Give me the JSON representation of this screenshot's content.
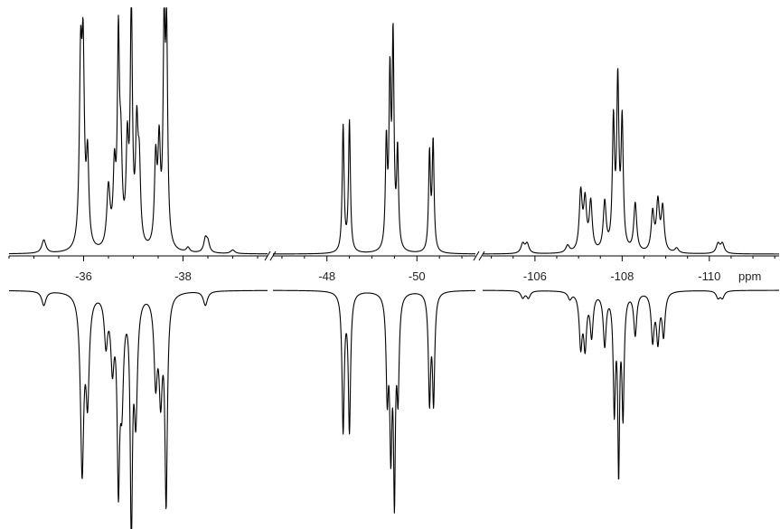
{
  "chart_data": {
    "type": "line",
    "xlabel": "ppm",
    "ylabel": "",
    "title": "",
    "x_reversed": true,
    "axis_break_markers": true,
    "segments": [
      {
        "xlim": [
          -34.5,
          -39.7
        ],
        "tick_labels": [
          "-36",
          "-38"
        ],
        "ticks": [
          -36,
          -38
        ],
        "upper_peaks": [
          {
            "x": -35.2,
            "h": 0.055,
            "w": 0.05
          },
          {
            "x": -35.94,
            "h": 0.72,
            "w": 0.03
          },
          {
            "x": -35.99,
            "h": 0.74,
            "w": 0.03
          },
          {
            "x": -36.08,
            "h": 0.36,
            "w": 0.03
          },
          {
            "x": -36.5,
            "h": 0.25,
            "w": 0.04
          },
          {
            "x": -36.62,
            "h": 0.3,
            "w": 0.03
          },
          {
            "x": -36.7,
            "h": 0.82,
            "w": 0.025
          },
          {
            "x": -36.75,
            "h": 0.35,
            "w": 0.03
          },
          {
            "x": -36.88,
            "h": 0.4,
            "w": 0.03
          },
          {
            "x": -36.96,
            "h": 1.0,
            "w": 0.025
          },
          {
            "x": -37.07,
            "h": 0.46,
            "w": 0.03
          },
          {
            "x": -37.12,
            "h": 0.3,
            "w": 0.03
          },
          {
            "x": -37.45,
            "h": 0.35,
            "w": 0.03
          },
          {
            "x": -37.52,
            "h": 0.4,
            "w": 0.03
          },
          {
            "x": -37.62,
            "h": 0.85,
            "w": 0.025
          },
          {
            "x": -37.67,
            "h": 0.83,
            "w": 0.025
          },
          {
            "x": -38.1,
            "h": 0.02,
            "w": 0.04
          },
          {
            "x": -38.45,
            "h": 0.055,
            "w": 0.04
          },
          {
            "x": -38.5,
            "h": 0.04,
            "w": 0.04
          },
          {
            "x": -39.0,
            "h": 0.015,
            "w": 0.05
          }
        ],
        "lower_peaks": [
          {
            "x": -35.2,
            "h": 0.06,
            "w": 0.05
          },
          {
            "x": -35.97,
            "h": 0.74,
            "w": 0.04
          },
          {
            "x": -36.08,
            "h": 0.42,
            "w": 0.04
          },
          {
            "x": -36.45,
            "h": 0.2,
            "w": 0.04
          },
          {
            "x": -36.58,
            "h": 0.28,
            "w": 0.04
          },
          {
            "x": -36.7,
            "h": 0.74,
            "w": 0.03
          },
          {
            "x": -36.77,
            "h": 0.4,
            "w": 0.04
          },
          {
            "x": -36.96,
            "h": 1.0,
            "w": 0.025
          },
          {
            "x": -37.05,
            "h": 0.5,
            "w": 0.04
          },
          {
            "x": -37.45,
            "h": 0.35,
            "w": 0.04
          },
          {
            "x": -37.55,
            "h": 0.4,
            "w": 0.04
          },
          {
            "x": -37.66,
            "h": 0.86,
            "w": 0.03
          },
          {
            "x": -38.45,
            "h": 0.06,
            "w": 0.05
          }
        ]
      },
      {
        "xlim": [
          -46.8,
          -51.3
        ],
        "tick_labels": [
          "-48",
          "-50"
        ],
        "ticks": [
          -48,
          -50
        ],
        "upper_peaks": [
          {
            "x": -48.36,
            "h": 0.52,
            "w": 0.025
          },
          {
            "x": -48.5,
            "h": 0.54,
            "w": 0.025
          },
          {
            "x": -49.32,
            "h": 0.43,
            "w": 0.025
          },
          {
            "x": -49.4,
            "h": 0.68,
            "w": 0.025
          },
          {
            "x": -49.47,
            "h": 0.85,
            "w": 0.025
          },
          {
            "x": -49.57,
            "h": 0.4,
            "w": 0.025
          },
          {
            "x": -50.28,
            "h": 0.4,
            "w": 0.025
          },
          {
            "x": -50.36,
            "h": 0.45,
            "w": 0.025
          }
        ],
        "lower_peaks": [
          {
            "x": -48.36,
            "h": 0.58,
            "w": 0.03
          },
          {
            "x": -48.5,
            "h": 0.58,
            "w": 0.03
          },
          {
            "x": -49.34,
            "h": 0.4,
            "w": 0.03
          },
          {
            "x": -49.42,
            "h": 0.62,
            "w": 0.03
          },
          {
            "x": -49.5,
            "h": 0.8,
            "w": 0.025
          },
          {
            "x": -49.58,
            "h": 0.4,
            "w": 0.03
          },
          {
            "x": -50.28,
            "h": 0.45,
            "w": 0.03
          },
          {
            "x": -50.37,
            "h": 0.45,
            "w": 0.03
          }
        ]
      },
      {
        "xlim": [
          -104.8,
          -111.6
        ],
        "tick_labels": [
          "-106",
          "-108",
          "-110"
        ],
        "ticks": [
          -106,
          -108,
          -110
        ],
        "upper_peaks": [
          {
            "x": -105.72,
            "h": 0.04,
            "w": 0.05
          },
          {
            "x": -105.82,
            "h": 0.04,
            "w": 0.05
          },
          {
            "x": -106.75,
            "h": 0.03,
            "w": 0.05
          },
          {
            "x": -107.05,
            "h": 0.24,
            "w": 0.04
          },
          {
            "x": -107.15,
            "h": 0.2,
            "w": 0.04
          },
          {
            "x": -107.28,
            "h": 0.2,
            "w": 0.04
          },
          {
            "x": -107.6,
            "h": 0.2,
            "w": 0.04
          },
          {
            "x": -107.8,
            "h": 0.52,
            "w": 0.03
          },
          {
            "x": -107.9,
            "h": 0.68,
            "w": 0.03
          },
          {
            "x": -108.0,
            "h": 0.52,
            "w": 0.03
          },
          {
            "x": -108.3,
            "h": 0.2,
            "w": 0.04
          },
          {
            "x": -108.7,
            "h": 0.16,
            "w": 0.04
          },
          {
            "x": -108.82,
            "h": 0.2,
            "w": 0.04
          },
          {
            "x": -108.93,
            "h": 0.18,
            "w": 0.04
          },
          {
            "x": -109.25,
            "h": 0.02,
            "w": 0.05
          },
          {
            "x": -110.2,
            "h": 0.04,
            "w": 0.05
          },
          {
            "x": -110.3,
            "h": 0.04,
            "w": 0.05
          }
        ],
        "lower_peaks": [
          {
            "x": -105.72,
            "h": 0.03,
            "w": 0.05
          },
          {
            "x": -105.85,
            "h": 0.03,
            "w": 0.05
          },
          {
            "x": -106.8,
            "h": 0.03,
            "w": 0.05
          },
          {
            "x": -107.05,
            "h": 0.22,
            "w": 0.04
          },
          {
            "x": -107.15,
            "h": 0.22,
            "w": 0.04
          },
          {
            "x": -107.3,
            "h": 0.18,
            "w": 0.04
          },
          {
            "x": -107.6,
            "h": 0.22,
            "w": 0.04
          },
          {
            "x": -107.82,
            "h": 0.48,
            "w": 0.03
          },
          {
            "x": -107.92,
            "h": 0.72,
            "w": 0.025
          },
          {
            "x": -108.02,
            "h": 0.5,
            "w": 0.03
          },
          {
            "x": -108.3,
            "h": 0.18,
            "w": 0.04
          },
          {
            "x": -108.7,
            "h": 0.2,
            "w": 0.04
          },
          {
            "x": -108.82,
            "h": 0.2,
            "w": 0.04
          },
          {
            "x": -108.95,
            "h": 0.18,
            "w": 0.04
          },
          {
            "x": -110.2,
            "h": 0.03,
            "w": 0.05
          },
          {
            "x": -110.3,
            "h": 0.03,
            "w": 0.05
          }
        ]
      }
    ]
  }
}
